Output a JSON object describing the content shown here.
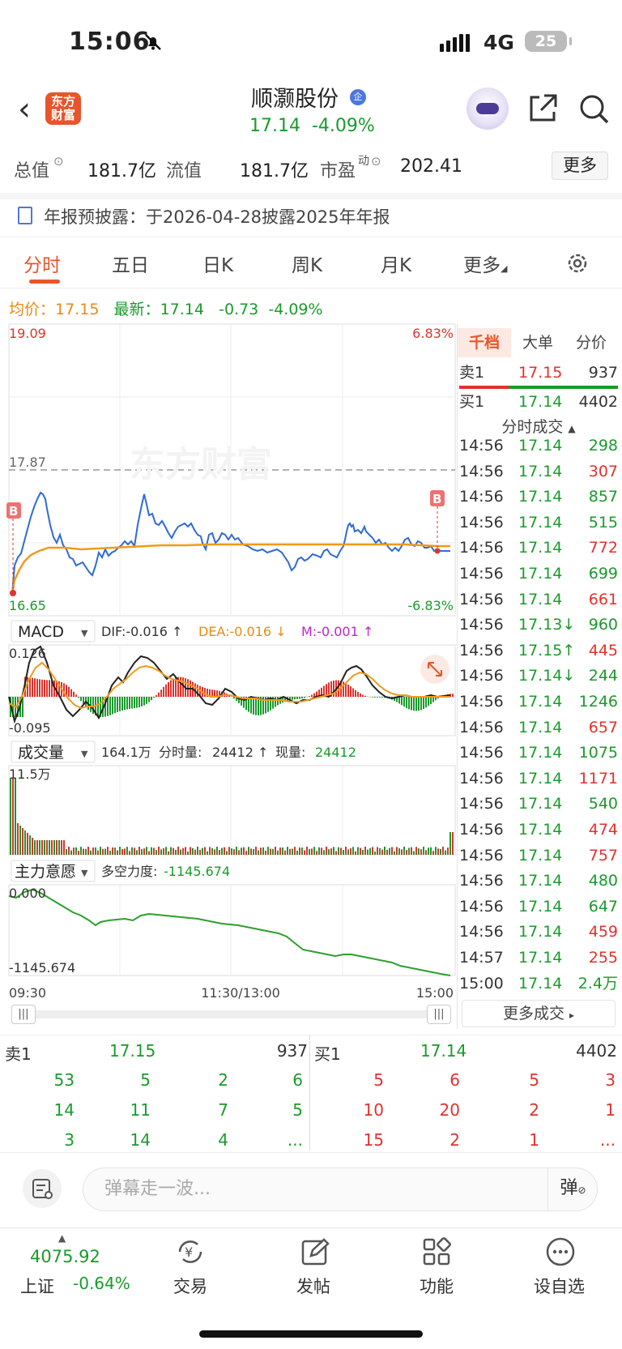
{
  "status_bar": {
    "time": "15:06",
    "network": "4G",
    "battery": "25"
  },
  "header": {
    "stock_name": "顺灏股份",
    "corp_badge": "企",
    "price": "17.14",
    "change_pct": "-4.09%",
    "logo_line1": "东方",
    "logo_line2": "财富"
  },
  "info": {
    "total_value_label": "总值",
    "total_value": "181.7亿",
    "float_label": "流值",
    "float_value": "181.7亿",
    "pe_label": "市盈",
    "pe_sup": "动",
    "pe_value": "202.41",
    "more_label": "更多"
  },
  "notice": "年报预披露：于2026-04-28披露2025年年报",
  "tabs": [
    "分时",
    "五日",
    "日K",
    "周K",
    "月K",
    "更多"
  ],
  "price_line": {
    "avg_label": "均价：",
    "avg": "17.15",
    "latest_label": "最新：",
    "latest": "17.14",
    "change": "-0.73",
    "change_pct": "-4.09%"
  },
  "chart_labels": {
    "high": "19.09",
    "low": "16.65",
    "prev_close": "17.87",
    "high_pct": "6.83%",
    "low_pct": "-6.83%",
    "watermark": "东方财富",
    "buy_marker": "B",
    "time_start": "09:30",
    "time_mid": "11:30/13:00",
    "time_end": "15:00"
  },
  "macd": {
    "selector": "MACD",
    "dif": "DIF:-0.016 ↑",
    "dea": "DEA:-0.016 ↓",
    "m": "M:-0.001 ↑",
    "top": "0.126",
    "bottom": "-0.095"
  },
  "volume": {
    "selector": "成交量",
    "total": "164.1万",
    "minute_label": "分时量:",
    "minute": "24412 ↑",
    "now_label": "现量:",
    "now": "24412",
    "top": "11.5万"
  },
  "main_force": {
    "selector": "主力意愿",
    "label": "多空力度:",
    "value": "-1145.674",
    "top": "0.000",
    "bottom": "-1145.674"
  },
  "right_panel": {
    "tabs": [
      "千档",
      "大单",
      "分价"
    ],
    "sell1": {
      "label": "卖1",
      "price": "17.15",
      "vol": "937"
    },
    "buy1": {
      "label": "买1",
      "price": "17.14",
      "vol": "4402"
    },
    "ticks_title": "分时成交",
    "more_ticks": "更多成交",
    "ticks": [
      {
        "t": "14:56",
        "p": "17.14",
        "v": "298",
        "pc": "green",
        "vc": "green"
      },
      {
        "t": "14:56",
        "p": "17.14",
        "v": "307",
        "pc": "green",
        "vc": "red"
      },
      {
        "t": "14:56",
        "p": "17.14",
        "v": "857",
        "pc": "green",
        "vc": "green"
      },
      {
        "t": "14:56",
        "p": "17.14",
        "v": "515",
        "pc": "green",
        "vc": "green"
      },
      {
        "t": "14:56",
        "p": "17.14",
        "v": "772",
        "pc": "green",
        "vc": "red"
      },
      {
        "t": "14:56",
        "p": "17.14",
        "v": "699",
        "pc": "green",
        "vc": "green"
      },
      {
        "t": "14:56",
        "p": "17.14",
        "v": "661",
        "pc": "green",
        "vc": "red"
      },
      {
        "t": "14:56",
        "p": "17.13↓",
        "v": "960",
        "pc": "green",
        "vc": "green"
      },
      {
        "t": "14:56",
        "p": "17.15↑",
        "v": "445",
        "pc": "green",
        "vc": "red"
      },
      {
        "t": "14:56",
        "p": "17.14↓",
        "v": "244",
        "pc": "green",
        "vc": "green"
      },
      {
        "t": "14:56",
        "p": "17.14",
        "v": "1246",
        "pc": "green",
        "vc": "green"
      },
      {
        "t": "14:56",
        "p": "17.14",
        "v": "657",
        "pc": "green",
        "vc": "red"
      },
      {
        "t": "14:56",
        "p": "17.14",
        "v": "1075",
        "pc": "green",
        "vc": "green"
      },
      {
        "t": "14:56",
        "p": "17.14",
        "v": "1171",
        "pc": "green",
        "vc": "red"
      },
      {
        "t": "14:56",
        "p": "17.14",
        "v": "540",
        "pc": "green",
        "vc": "green"
      },
      {
        "t": "14:56",
        "p": "17.14",
        "v": "474",
        "pc": "green",
        "vc": "red"
      },
      {
        "t": "14:56",
        "p": "17.14",
        "v": "757",
        "pc": "green",
        "vc": "red"
      },
      {
        "t": "14:56",
        "p": "17.14",
        "v": "480",
        "pc": "green",
        "vc": "green"
      },
      {
        "t": "14:56",
        "p": "17.14",
        "v": "647",
        "pc": "green",
        "vc": "green"
      },
      {
        "t": "14:56",
        "p": "17.14",
        "v": "459",
        "pc": "green",
        "vc": "red"
      },
      {
        "t": "14:57",
        "p": "17.14",
        "v": "255",
        "pc": "green",
        "vc": "red"
      },
      {
        "t": "15:00",
        "p": "17.14",
        "v": "2.4万",
        "pc": "green",
        "vc": "green"
      }
    ]
  },
  "order_book": {
    "sell_label": "卖1",
    "sell_price": "17.15",
    "sell_vol": "937",
    "buy_label": "买1",
    "buy_price": "17.14",
    "buy_vol": "4402",
    "sell_rows": [
      [
        "53",
        "5",
        "2",
        "6"
      ],
      [
        "14",
        "11",
        "7",
        "5"
      ],
      [
        "3",
        "14",
        "4",
        "..."
      ]
    ],
    "buy_rows": [
      [
        "5",
        "6",
        "5",
        "3"
      ],
      [
        "10",
        "20",
        "2",
        "1"
      ],
      [
        "15",
        "2",
        "1",
        "..."
      ]
    ]
  },
  "danmaku": {
    "placeholder": "弹幕走一波...",
    "send": "弹"
  },
  "bottom_nav": {
    "index_value": "4075.92",
    "index_name": "上证",
    "index_change": "-0.64%",
    "items": [
      "交易",
      "发帖",
      "功能",
      "设自选"
    ]
  }
}
